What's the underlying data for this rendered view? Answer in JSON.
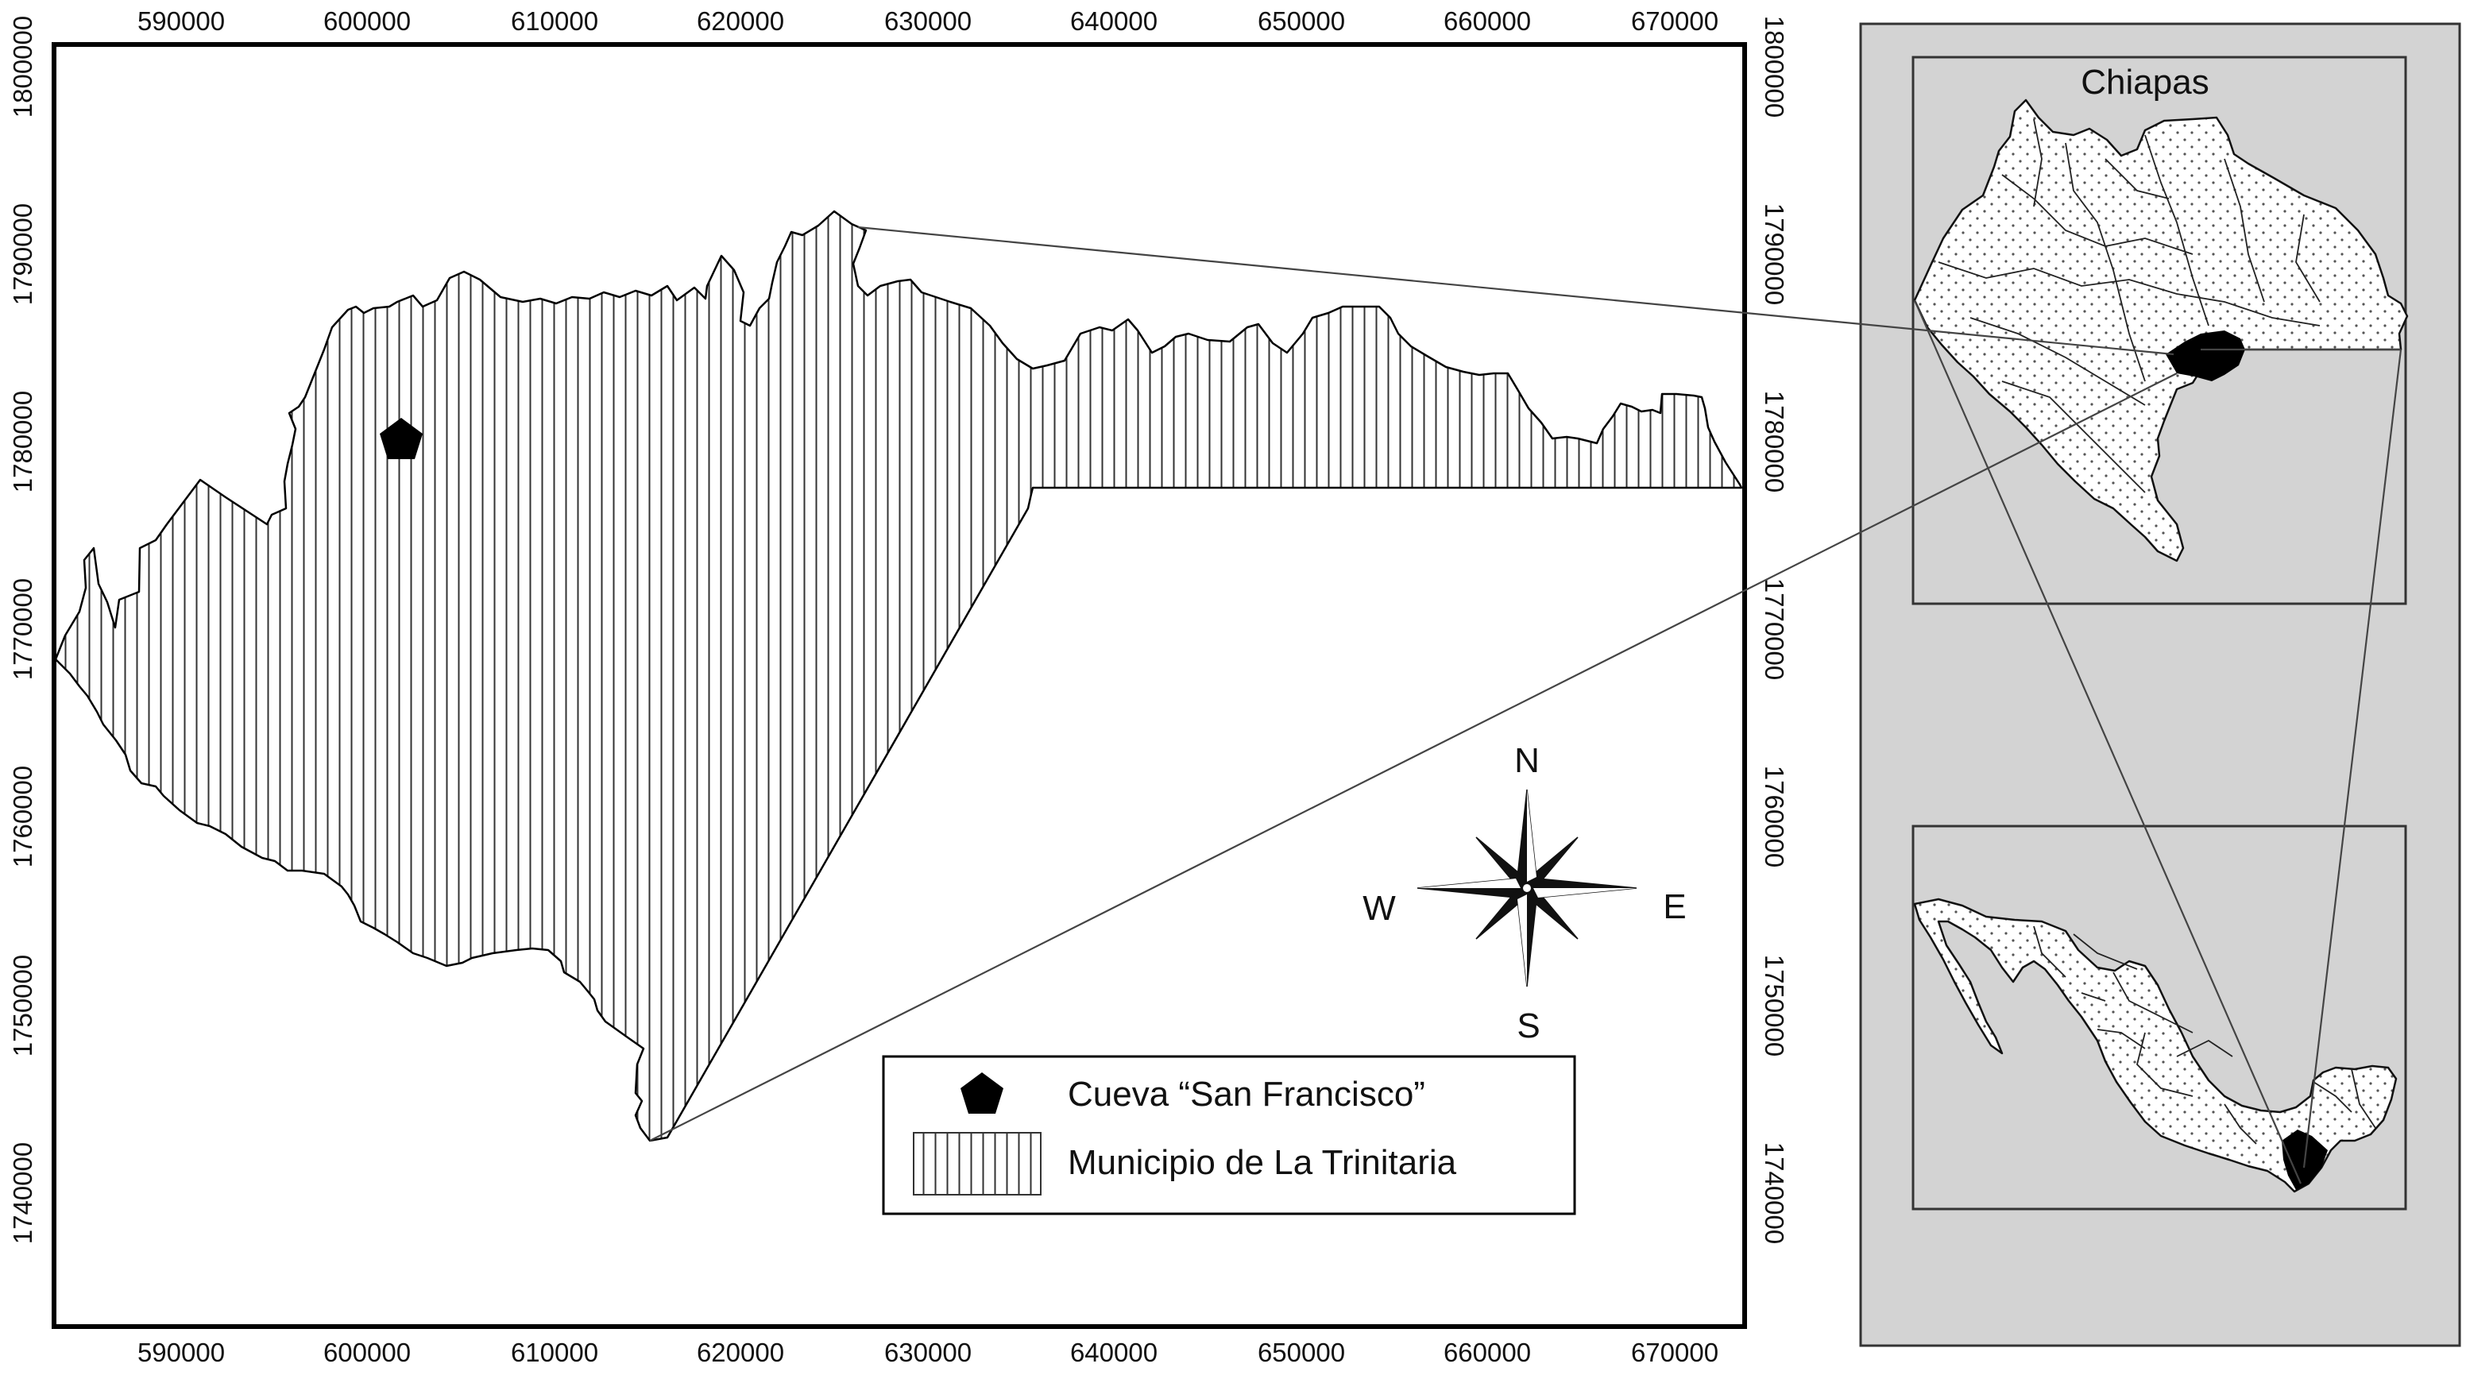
{
  "main_map": {
    "x_ticks": [
      "590000",
      "600000",
      "610000",
      "620000",
      "630000",
      "640000",
      "650000",
      "660000",
      "670000"
    ],
    "y_ticks": [
      "1800000",
      "1790000",
      "1780000",
      "1770000",
      "1760000",
      "1750000",
      "1740000"
    ],
    "compass": {
      "n": "N",
      "s": "S",
      "e": "E",
      "w": "W"
    },
    "legend": {
      "cave_label": "Cueva “San Francisco”",
      "municipality_label": "Municipio de La Trinitaria"
    }
  },
  "inset": {
    "chiapas_label": "Chiapas"
  },
  "colors": {
    "inset_background": "#d3d3d3",
    "ink": "#111111",
    "highlight": "#000000"
  }
}
